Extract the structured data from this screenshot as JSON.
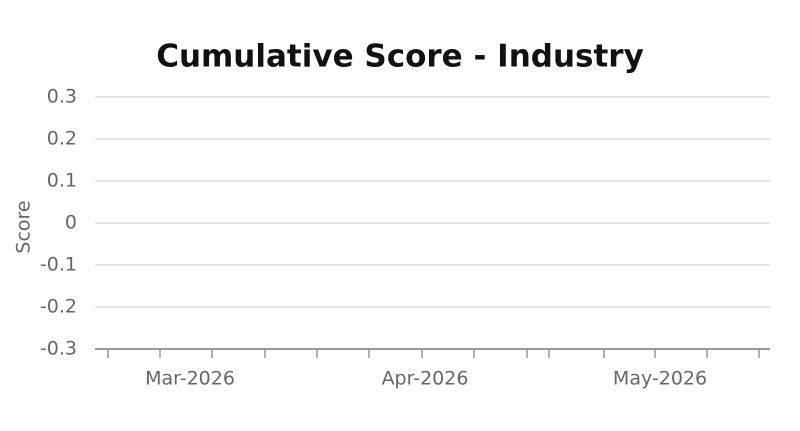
{
  "chart_data": {
    "type": "line",
    "title": "Cumulative Score - Industry",
    "y_label": "Score",
    "categories": [
      "Mar-2026",
      "Apr-2026",
      "May-2026"
    ],
    "ylim": [
      -0.3,
      0.3
    ],
    "yticks": [
      -0.3,
      -0.2,
      -0.1,
      0,
      0.1,
      0.2,
      0.3
    ],
    "grid": true
  }
}
